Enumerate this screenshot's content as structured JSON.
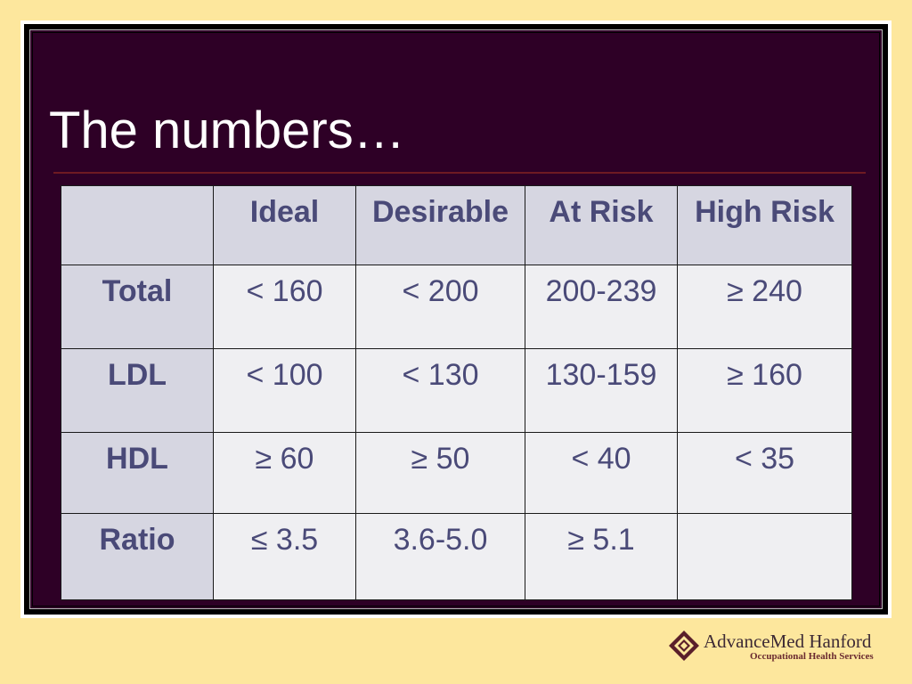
{
  "slide": {
    "title": "The numbers…"
  },
  "table": {
    "headers": [
      "",
      "Ideal",
      "Desirable",
      "At Risk",
      "High Risk"
    ],
    "rows": [
      {
        "label": "Total",
        "cells": [
          "< 160",
          "< 200",
          "200-239",
          "≥ 240"
        ]
      },
      {
        "label": "LDL",
        "cells": [
          "< 100",
          "< 130",
          "130-159",
          "≥ 160"
        ]
      },
      {
        "label": "HDL",
        "cells": [
          "≥ 60",
          "≥ 50",
          "< 40",
          "< 35"
        ]
      },
      {
        "label": "Ratio",
        "cells": [
          "≤ 3.5",
          "3.6-5.0",
          "≥ 5.1",
          ""
        ]
      }
    ]
  },
  "logo": {
    "name": "AdvanceMed Hanford",
    "tagline": "Occupational Health Services",
    "icon": "diamond-logo-icon"
  },
  "colors": {
    "page_background": "#fde79d",
    "slide_background": "#2e0026",
    "header_cell": "#d6d6e1",
    "body_cell": "#efeff2",
    "table_text": "#4a4a78",
    "title_rule": "#6e1a22"
  }
}
